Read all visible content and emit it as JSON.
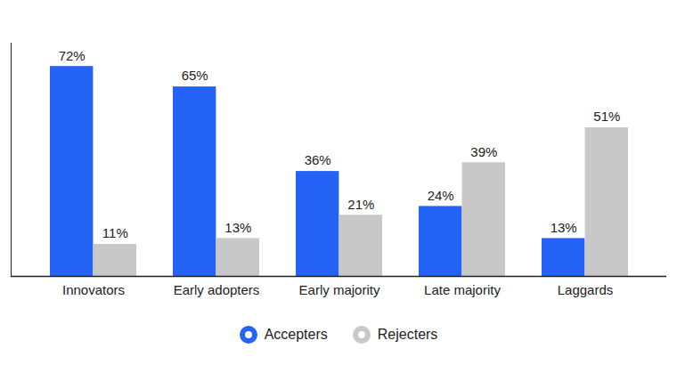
{
  "chart_data": {
    "type": "bar",
    "categories": [
      "Innovators",
      "Early adopters",
      "Early majority",
      "Late majority",
      "Laggards"
    ],
    "series": [
      {
        "name": "Accepters",
        "color": "#2563f6",
        "values": [
          72,
          65,
          36,
          24,
          13
        ],
        "value_labels": [
          "72%",
          "65%",
          "36%",
          "24%",
          "13%"
        ]
      },
      {
        "name": "Rejecters",
        "color": "#c8c8c8",
        "values": [
          11,
          13,
          21,
          39,
          51
        ],
        "value_labels": [
          "11%",
          "13%",
          "21%",
          "39%",
          "51%"
        ]
      }
    ],
    "ylim": [
      0,
      80
    ],
    "yticks": [],
    "data_labels": true,
    "tick_labels": "x",
    "legend": "bottom"
  }
}
